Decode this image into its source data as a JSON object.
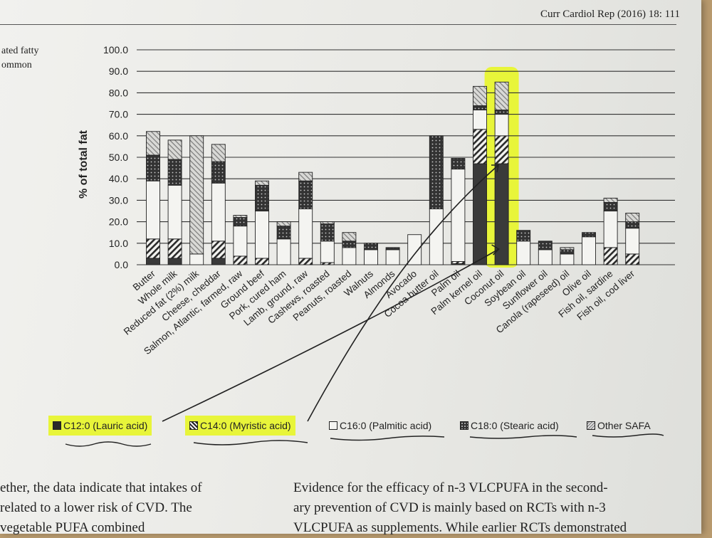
{
  "header": {
    "journal": "Curr Cardiol Rep (2016) 18: 111"
  },
  "caption_fragment": [
    "ated fatty",
    "ommon"
  ],
  "colors": {
    "highlight": "#e8f53a",
    "ink": "#222222",
    "lauric": "#3a3a3a",
    "palmitic": "#f4f4f1"
  },
  "chart_data": {
    "type": "bar",
    "stacked": true,
    "ylabel": "% of total fat",
    "ylim": [
      0,
      100
    ],
    "yticks": [
      "0.0",
      "10.0",
      "20.0",
      "30.0",
      "40.0",
      "50.0",
      "60.0",
      "70.0",
      "80.0",
      "90.0",
      "100.0"
    ],
    "grid": true,
    "legend_position": "bottom",
    "categories": [
      "Butter",
      "Whole milk",
      "Reduced fat (2%) milk",
      "Cheese, cheddar",
      "Salmon, Atlantic, farmed, raw",
      "Ground beef",
      "Pork, cured ham",
      "Lamb, ground, raw",
      "Cashews, roasted",
      "Peanuts, roasted",
      "Walnuts",
      "Almonds",
      "Avocado",
      "Cocoa butter oil",
      "Palm oil",
      "Palm kernel oil",
      "Coconut oil",
      "Soybean oil",
      "Sunflower oil",
      "Canola (rapeseed) oil",
      "Olive oil",
      "Fish oil, sardine",
      "Fish oil, cod liver"
    ],
    "highlighted_category": "Coconut oil",
    "series": [
      {
        "name": "C12:0 (Lauric acid)",
        "pattern": "solid-dark",
        "values": [
          3,
          3,
          0,
          3,
          0,
          0,
          0,
          0,
          0,
          0,
          0,
          0,
          0,
          0,
          0.5,
          47,
          47,
          0,
          0,
          0,
          0,
          0,
          0
        ]
      },
      {
        "name": "C14:0 (Myristic acid)",
        "pattern": "diagonal",
        "values": [
          9,
          9,
          0,
          8,
          4,
          3,
          0,
          3,
          1,
          0,
          0,
          0,
          0,
          0,
          1,
          16,
          13,
          0,
          0,
          0,
          0,
          8,
          5
        ]
      },
      {
        "name": "C16:0 (Palmitic acid)",
        "pattern": "white",
        "values": [
          27,
          25,
          5,
          27,
          14,
          22,
          12,
          23,
          10,
          8,
          7,
          7,
          14,
          26,
          43,
          9,
          10,
          11,
          7,
          5,
          13,
          17,
          12
        ]
      },
      {
        "name": "C18:0 (Stearic acid)",
        "pattern": "dotted-dark",
        "values": [
          12,
          12,
          0,
          10,
          4,
          12,
          6,
          13,
          8,
          3,
          3,
          1,
          0,
          34,
          5,
          2,
          2,
          5,
          4,
          2,
          2,
          4,
          3
        ]
      },
      {
        "name": "Other SAFA",
        "pattern": "hatched-light",
        "values": [
          11,
          9,
          55,
          8,
          1,
          2,
          2,
          4,
          1,
          4,
          0,
          0,
          0,
          0,
          0,
          9,
          13,
          0,
          0,
          1,
          0,
          2,
          4
        ]
      }
    ]
  },
  "body_text": {
    "left": [
      "ether, the data indicate that intakes of",
      "related to a lower risk of CVD. The",
      "vegetable PUFA combined"
    ],
    "right": [
      "Evidence for the efficacy of n-3 VLCPUFA in the second-",
      "ary prevention of CVD is mainly based on RCTs with n-3",
      "VLCPUFA as supplements. While earlier RCTs demonstrated"
    ]
  }
}
